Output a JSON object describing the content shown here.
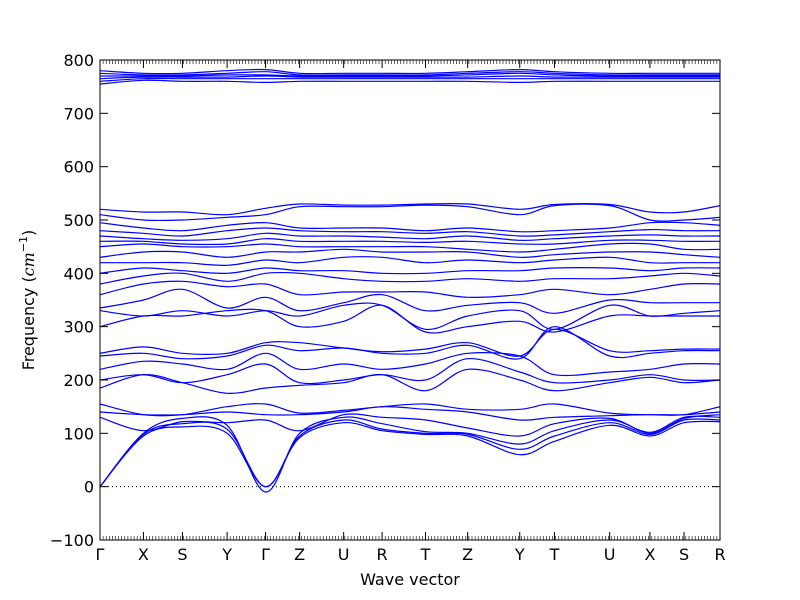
{
  "chart_data": {
    "type": "line",
    "title": "",
    "xlabel": "Wave vector",
    "ylabel": "Frequency ($cm^{-1}$)",
    "ylabel_text": "Frequency (",
    "ylabel_unit_base": "cm",
    "ylabel_unit_exp": "−1",
    "ylabel_close": ")",
    "ylim": [
      -100,
      800
    ],
    "y_ticks": [
      -100,
      0,
      100,
      200,
      300,
      400,
      500,
      600,
      700,
      800
    ],
    "x_ticks": [
      {
        "label": "Γ",
        "x": 0.0
      },
      {
        "label": "X",
        "x": 0.07
      },
      {
        "label": "S",
        "x": 0.133
      },
      {
        "label": "Y",
        "x": 0.205
      },
      {
        "label": "Γ",
        "x": 0.267
      },
      {
        "label": "Z",
        "x": 0.322
      },
      {
        "label": "U",
        "x": 0.393
      },
      {
        "label": "R",
        "x": 0.455
      },
      {
        "label": "T",
        "x": 0.525
      },
      {
        "label": "Z",
        "x": 0.593
      },
      {
        "label": "Y",
        "x": 0.677
      },
      {
        "label": "T",
        "x": 0.733
      },
      {
        "label": "U",
        "x": 0.822
      },
      {
        "label": "X",
        "x": 0.887
      },
      {
        "label": "S",
        "x": 0.942
      },
      {
        "label": "R",
        "x": 1.0
      }
    ],
    "zero_line": 0,
    "line_color": "#0000ff",
    "series": [
      {
        "values": [
          0,
          95,
          112,
          100,
          0,
          92,
          120,
          105,
          98,
          95,
          60,
          85,
          115,
          95,
          120,
          122
        ]
      },
      {
        "values": [
          0,
          98,
          118,
          108,
          0,
          95,
          125,
          108,
          100,
          98,
          70,
          95,
          120,
          98,
          125,
          125
        ]
      },
      {
        "values": [
          0,
          100,
          128,
          115,
          -10,
          100,
          130,
          118,
          103,
          100,
          80,
          105,
          125,
          102,
          130,
          130
        ]
      },
      {
        "values": [
          130,
          105,
          122,
          120,
          125,
          105,
          135,
          130,
          125,
          110,
          95,
          118,
          128,
          100,
          128,
          135
        ]
      },
      {
        "values": [
          140,
          135,
          135,
          140,
          135,
          135,
          140,
          150,
          145,
          140,
          125,
          130,
          133,
          135,
          135,
          140
        ]
      },
      {
        "values": [
          155,
          135,
          135,
          150,
          155,
          138,
          143,
          150,
          155,
          145,
          145,
          155,
          138,
          135,
          135,
          150
        ]
      },
      {
        "values": [
          185,
          210,
          195,
          175,
          185,
          190,
          195,
          210,
          180,
          220,
          200,
          180,
          195,
          205,
          195,
          200
        ]
      },
      {
        "values": [
          200,
          210,
          195,
          210,
          230,
          195,
          200,
          210,
          200,
          240,
          215,
          195,
          200,
          210,
          200,
          200
        ]
      },
      {
        "values": [
          220,
          235,
          230,
          220,
          250,
          220,
          230,
          220,
          230,
          250,
          245,
          210,
          215,
          220,
          230,
          230
        ]
      },
      {
        "values": [
          245,
          250,
          240,
          245,
          265,
          255,
          260,
          250,
          250,
          265,
          240,
          300,
          245,
          250,
          255,
          255
        ]
      },
      {
        "values": [
          250,
          262,
          250,
          250,
          270,
          270,
          260,
          253,
          258,
          270,
          245,
          295,
          255,
          255,
          258,
          258
        ]
      },
      {
        "values": [
          300,
          320,
          320,
          330,
          330,
          300,
          310,
          340,
          290,
          300,
          310,
          290,
          320,
          320,
          320,
          320
        ]
      },
      {
        "values": [
          330,
          320,
          330,
          320,
          330,
          320,
          340,
          340,
          295,
          320,
          330,
          295,
          340,
          320,
          325,
          330
        ]
      },
      {
        "values": [
          335,
          350,
          370,
          335,
          355,
          330,
          345,
          360,
          330,
          340,
          345,
          325,
          350,
          345,
          345,
          345
        ]
      },
      {
        "values": [
          360,
          380,
          385,
          375,
          380,
          360,
          365,
          365,
          365,
          355,
          360,
          370,
          360,
          370,
          380,
          380
        ]
      },
      {
        "values": [
          380,
          395,
          400,
          385,
          400,
          400,
          390,
          385,
          385,
          390,
          385,
          390,
          390,
          395,
          400,
          395
        ]
      },
      {
        "values": [
          400,
          410,
          405,
          400,
          410,
          405,
          405,
          400,
          400,
          405,
          405,
          410,
          410,
          405,
          410,
          410
        ]
      },
      {
        "values": [
          420,
          420,
          420,
          415,
          425,
          420,
          430,
          430,
          420,
          425,
          420,
          425,
          430,
          420,
          420,
          420
        ]
      },
      {
        "values": [
          430,
          440,
          440,
          430,
          440,
          440,
          445,
          440,
          440,
          440,
          430,
          435,
          440,
          440,
          435,
          430
        ]
      },
      {
        "values": [
          450,
          455,
          450,
          450,
          455,
          450,
          450,
          450,
          450,
          445,
          440,
          445,
          455,
          455,
          445,
          445
        ]
      },
      {
        "values": [
          460,
          460,
          455,
          455,
          465,
          460,
          460,
          460,
          458,
          460,
          455,
          455,
          462,
          462,
          460,
          460
        ]
      },
      {
        "values": [
          470,
          465,
          462,
          465,
          475,
          470,
          470,
          468,
          465,
          470,
          462,
          465,
          470,
          472,
          470,
          470
        ]
      },
      {
        "values": [
          480,
          475,
          470,
          480,
          485,
          480,
          478,
          478,
          475,
          478,
          470,
          472,
          478,
          482,
          480,
          480
        ]
      },
      {
        "values": [
          495,
          485,
          480,
          490,
          495,
          485,
          485,
          485,
          480,
          485,
          478,
          480,
          485,
          495,
          495,
          490
        ]
      },
      {
        "values": [
          510,
          500,
          500,
          505,
          510,
          525,
          525,
          525,
          528,
          525,
          510,
          527,
          527,
          500,
          500,
          505
        ]
      },
      {
        "values": [
          520,
          515,
          515,
          510,
          522,
          530,
          528,
          528,
          530,
          530,
          520,
          529,
          529,
          515,
          515,
          527
        ]
      },
      {
        "values": [
          755,
          762,
          760,
          760,
          758,
          760,
          760,
          760,
          760,
          760,
          758,
          760,
          760,
          760,
          760,
          760
        ]
      },
      {
        "values": [
          760,
          765,
          765,
          765,
          765,
          765,
          765,
          765,
          765,
          765,
          765,
          765,
          765,
          765,
          765,
          765
        ]
      },
      {
        "values": [
          765,
          768,
          768,
          768,
          770,
          768,
          768,
          768,
          768,
          768,
          770,
          768,
          768,
          768,
          768,
          768
        ]
      },
      {
        "values": [
          770,
          770,
          770,
          772,
          772,
          770,
          770,
          770,
          770,
          772,
          775,
          772,
          770,
          770,
          770,
          770
        ]
      },
      {
        "values": [
          775,
          772,
          772,
          775,
          778,
          772,
          772,
          772,
          772,
          775,
          778,
          775,
          772,
          772,
          772,
          772
        ]
      },
      {
        "values": [
          780,
          775,
          775,
          780,
          782,
          775,
          775,
          775,
          775,
          778,
          782,
          778,
          775,
          775,
          775,
          775
        ]
      }
    ]
  }
}
